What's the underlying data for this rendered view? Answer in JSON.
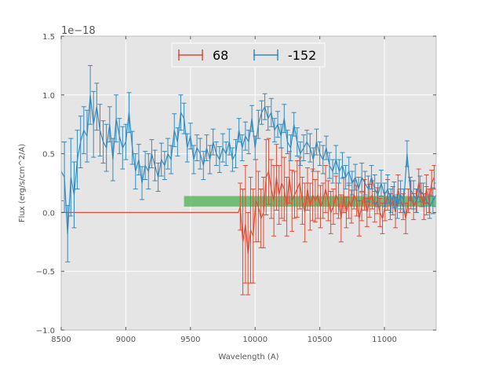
{
  "chart_data": {
    "type": "line",
    "title": "",
    "xlabel": "Wavelength (A)",
    "ylabel": "Flux (erg/s/cm^2/A)",
    "y_offset_label": "1e−18",
    "xlim": [
      8500,
      11400
    ],
    "ylim": [
      -1.0,
      1.5
    ],
    "xticks": [
      8500,
      9000,
      9500,
      10000,
      10500,
      11000
    ],
    "xtick_labels": [
      "8500",
      "9000",
      "9500",
      "10000",
      "10500",
      "11000"
    ],
    "yticks": [
      -1.0,
      -0.5,
      0.0,
      0.5,
      1.0,
      1.5
    ],
    "ytick_labels": [
      "−1.0",
      "−0.5",
      "0.0",
      "0.5",
      "1.0",
      "1.5"
    ],
    "grid": true,
    "legend_position": "top-center",
    "colors": {
      "series1": "#e24a33",
      "series2": "#348abd",
      "band": "#4caf50",
      "background": "#e5e5e5"
    },
    "band": {
      "x_start": 9450,
      "x_end": 11400,
      "y_low": 0.05,
      "y_high": 0.14
    },
    "series": [
      {
        "name": "68",
        "x": [
          8500,
          9000,
          9500,
          9870,
          9885,
          9905,
          9925,
          9945,
          9965,
          9985,
          10005,
          10025,
          10045,
          10065,
          10085,
          10105,
          10125,
          10145,
          10165,
          10185,
          10205,
          10225,
          10245,
          10265,
          10285,
          10305,
          10325,
          10345,
          10365,
          10385,
          10405,
          10425,
          10445,
          10465,
          10485,
          10505,
          10525,
          10545,
          10565,
          10585,
          10605,
          10625,
          10645,
          10665,
          10685,
          10705,
          10725,
          10745,
          10765,
          10785,
          10805,
          10825,
          10845,
          10865,
          10885,
          10905,
          10925,
          10945,
          10965,
          10985,
          11005,
          11025,
          11045,
          11065,
          11085,
          11105,
          11125,
          11145,
          11165,
          11185,
          11205,
          11225,
          11245,
          11265,
          11285,
          11305,
          11325,
          11345,
          11365,
          11385
        ],
        "y": [
          0,
          0,
          0,
          0,
          0.05,
          -0.25,
          -0.1,
          -0.35,
          -0.15,
          -0.2,
          0.1,
          0.05,
          -0.05,
          0.0,
          0.3,
          0.35,
          0.2,
          0.1,
          0.3,
          0.15,
          0.25,
          0.2,
          0.05,
          0.3,
          0.1,
          0.15,
          0.2,
          0.25,
          0.1,
          0.0,
          0.2,
          0.05,
          0.15,
          0.1,
          0.15,
          0.05,
          0.1,
          0.2,
          0.1,
          0.0,
          0.05,
          0.15,
          0.1,
          -0.05,
          0.15,
          0.0,
          0.1,
          0.05,
          0.15,
          0.1,
          -0.05,
          0.05,
          0.15,
          0.0,
          0.1,
          0.15,
          0.05,
          0.1,
          0.0,
          -0.05,
          0.05,
          0.15,
          0.05,
          0.1,
          0.0,
          0.2,
          0.1,
          0.05,
          -0.05,
          0.1,
          0.15,
          0.05,
          0.1,
          0.25,
          0.15,
          0.05,
          0.2,
          0.1,
          0.25,
          0.3
        ],
        "err": [
          0,
          0,
          0,
          0,
          0.2,
          0.45,
          0.5,
          0.35,
          0.45,
          0.4,
          0.35,
          0.3,
          0.25,
          0.3,
          0.32,
          0.28,
          0.25,
          0.3,
          0.28,
          0.25,
          0.3,
          0.27,
          0.25,
          0.22,
          0.26,
          0.2,
          0.24,
          0.22,
          0.2,
          0.25,
          0.18,
          0.2,
          0.22,
          0.18,
          0.2,
          0.18,
          0.15,
          0.2,
          0.17,
          0.18,
          0.15,
          0.16,
          0.15,
          0.2,
          0.15,
          0.13,
          0.15,
          0.14,
          0.12,
          0.13,
          0.15,
          0.12,
          0.13,
          0.12,
          0.14,
          0.12,
          0.13,
          0.11,
          0.12,
          0.13,
          0.12,
          0.13,
          0.11,
          0.12,
          0.13,
          0.12,
          0.1,
          0.11,
          0.13,
          0.1,
          0.12,
          0.11,
          0.1,
          0.12,
          0.1,
          0.11,
          0.12,
          0.1,
          0.11,
          0.1
        ]
      },
      {
        "name": "-152",
        "x": [
          8500,
          8525,
          8550,
          8575,
          8600,
          8625,
          8650,
          8675,
          8700,
          8725,
          8750,
          8775,
          8800,
          8825,
          8850,
          8875,
          8900,
          8925,
          8950,
          8975,
          9000,
          9025,
          9050,
          9075,
          9100,
          9125,
          9150,
          9175,
          9200,
          9225,
          9250,
          9275,
          9300,
          9325,
          9350,
          9375,
          9400,
          9425,
          9450,
          9475,
          9500,
          9525,
          9550,
          9575,
          9600,
          9625,
          9650,
          9675,
          9700,
          9725,
          9750,
          9775,
          9800,
          9825,
          9850,
          9875,
          9900,
          9925,
          9950,
          9975,
          10000,
          10025,
          10050,
          10075,
          10100,
          10125,
          10150,
          10175,
          10200,
          10225,
          10250,
          10275,
          10300,
          10325,
          10350,
          10375,
          10400,
          10425,
          10450,
          10475,
          10500,
          10525,
          10550,
          10575,
          10600,
          10625,
          10650,
          10675,
          10700,
          10725,
          10750,
          10775,
          10800,
          10825,
          10850,
          10875,
          10900,
          10925,
          10950,
          10975,
          11000,
          11025,
          11050,
          11075,
          11100,
          11125,
          11150,
          11175,
          11200,
          11225,
          11250,
          11275,
          11300,
          11325,
          11350,
          11375,
          11400
        ],
        "y": [
          0.35,
          0.3,
          -0.18,
          0.3,
          0.15,
          0.45,
          0.6,
          0.7,
          0.65,
          1.0,
          0.75,
          0.9,
          0.7,
          0.6,
          0.55,
          0.75,
          0.45,
          0.8,
          0.65,
          0.55,
          0.6,
          0.85,
          0.55,
          0.35,
          0.45,
          0.25,
          0.4,
          0.35,
          0.5,
          0.4,
          0.3,
          0.45,
          0.4,
          0.5,
          0.45,
          0.7,
          0.6,
          0.85,
          0.8,
          0.55,
          0.65,
          0.45,
          0.55,
          0.5,
          0.4,
          0.55,
          0.45,
          0.6,
          0.5,
          0.45,
          0.55,
          0.5,
          0.6,
          0.45,
          0.5,
          0.7,
          0.55,
          0.65,
          0.6,
          0.8,
          0.55,
          0.75,
          0.85,
          0.9,
          0.8,
          0.85,
          0.7,
          0.75,
          0.65,
          0.8,
          0.6,
          0.55,
          0.75,
          0.6,
          0.5,
          0.55,
          0.6,
          0.55,
          0.45,
          0.6,
          0.5,
          0.45,
          0.55,
          0.4,
          0.35,
          0.45,
          0.35,
          0.4,
          0.3,
          0.35,
          0.25,
          0.3,
          0.2,
          0.3,
          0.25,
          0.2,
          0.3,
          0.2,
          0.15,
          0.25,
          0.15,
          0.2,
          0.1,
          0.15,
          0.05,
          0.15,
          0.1,
          0.5,
          0.2,
          0.15,
          0.1,
          0.2,
          0.15,
          0.1,
          0.05,
          0.1,
          0.15
        ],
        "err": [
          0.25,
          0.3,
          0.24,
          0.33,
          0.28,
          0.25,
          0.22,
          0.2,
          0.22,
          0.25,
          0.28,
          0.2,
          0.22,
          0.18,
          0.2,
          0.15,
          0.18,
          0.2,
          0.15,
          0.18,
          0.15,
          0.17,
          0.14,
          0.15,
          0.13,
          0.14,
          0.12,
          0.15,
          0.12,
          0.13,
          0.12,
          0.14,
          0.12,
          0.13,
          0.12,
          0.14,
          0.12,
          0.15,
          0.13,
          0.12,
          0.11,
          0.12,
          0.11,
          0.13,
          0.12,
          0.11,
          0.12,
          0.11,
          0.1,
          0.11,
          0.12,
          0.1,
          0.11,
          0.1,
          0.12,
          0.1,
          0.11,
          0.12,
          0.1,
          0.11,
          0.1,
          0.12,
          0.1,
          0.11,
          0.1,
          0.12,
          0.1,
          0.11,
          0.1,
          0.12,
          0.1,
          0.11,
          0.1,
          0.12,
          0.1,
          0.11,
          0.1,
          0.12,
          0.1,
          0.11,
          0.1,
          0.12,
          0.1,
          0.11,
          0.1,
          0.12,
          0.1,
          0.11,
          0.1,
          0.12,
          0.1,
          0.11,
          0.1,
          0.12,
          0.1,
          0.11,
          0.1,
          0.12,
          0.1,
          0.11,
          0.1,
          0.12,
          0.1,
          0.11,
          0.1,
          0.12,
          0.1,
          0.11,
          0.1,
          0.12,
          0.1,
          0.11,
          0.1,
          0.12,
          0.1,
          0.11,
          0.1
        ]
      }
    ]
  }
}
